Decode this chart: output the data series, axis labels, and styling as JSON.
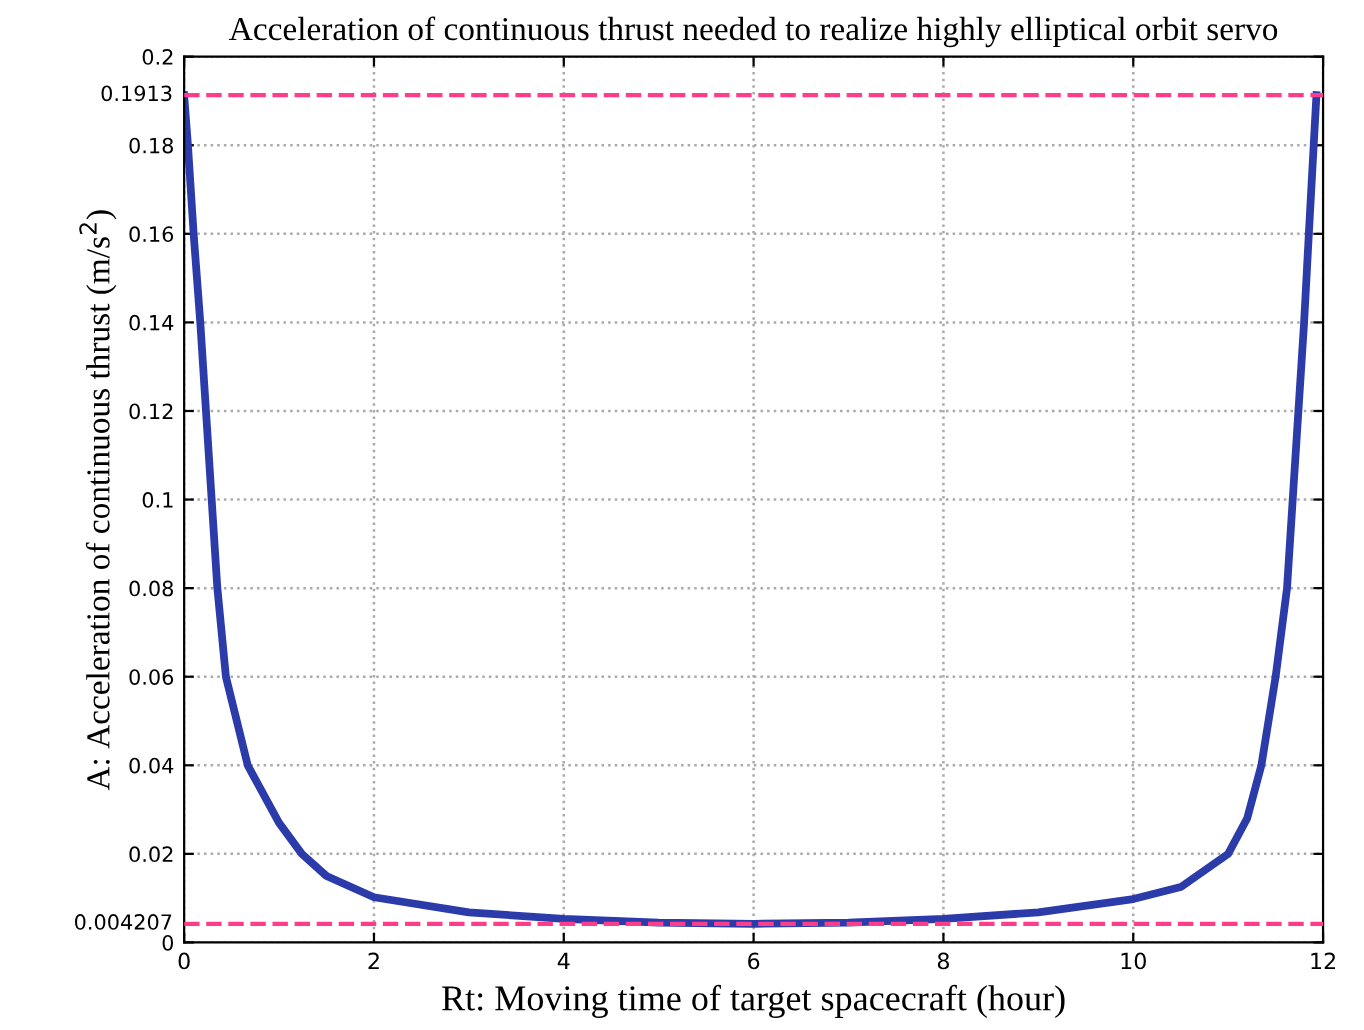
{
  "chart_data": {
    "type": "line",
    "title": "Acceleration of continuous thrust needed to realize highly elliptical orbit servo",
    "xlabel": "Rt: Moving time of target spacecraft (hour)",
    "ylabel": "A: Acceleration of continuous thrust (m/s$^{2}$)",
    "series": [
      {
        "color": "#2b3caa",
        "x": [
          0,
          0.04,
          0.1,
          0.17,
          0.23,
          0.29,
          0.35,
          0.44,
          0.67,
          1.0,
          1.24,
          1.5,
          2,
          3,
          4,
          5,
          6,
          7,
          8,
          9,
          10,
          10.5,
          11,
          11.2,
          11.35,
          11.5,
          11.62,
          11.68,
          11.74,
          11.8,
          11.85,
          11.93
        ],
        "values": [
          0.1913,
          0.18,
          0.16,
          0.14,
          0.12,
          0.1,
          0.08,
          0.06,
          0.04,
          0.027,
          0.02,
          0.015,
          0.0102,
          0.0068,
          0.0053,
          0.0045,
          0.0042,
          0.0045,
          0.0053,
          0.0068,
          0.0098,
          0.0125,
          0.02,
          0.028,
          0.04,
          0.06,
          0.08,
          0.1,
          0.12,
          0.14,
          0.16,
          0.1913
        ]
      }
    ],
    "xlim": [
      0,
      12
    ],
    "xticks": [
      0,
      2,
      4,
      6,
      8,
      10,
      12
    ],
    "ylim": [
      0,
      0.2
    ],
    "yticks": [
      0,
      0.02,
      0.04,
      0.06,
      0.08,
      0.1,
      0.12,
      0.14,
      0.16,
      0.18,
      0.2
    ],
    "ref_lines": [
      {
        "axis": "y",
        "value": 0.1913,
        "label": "0.1913",
        "color": "#ff3d8b",
        "line_style": "dashed"
      },
      {
        "axis": "y",
        "value": 0.004207,
        "label": "0.004207",
        "color": "#ff3d8b",
        "line_style": "dashed"
      }
    ],
    "grid": true,
    "marker": "none",
    "line_style": "solid",
    "legend": false
  }
}
